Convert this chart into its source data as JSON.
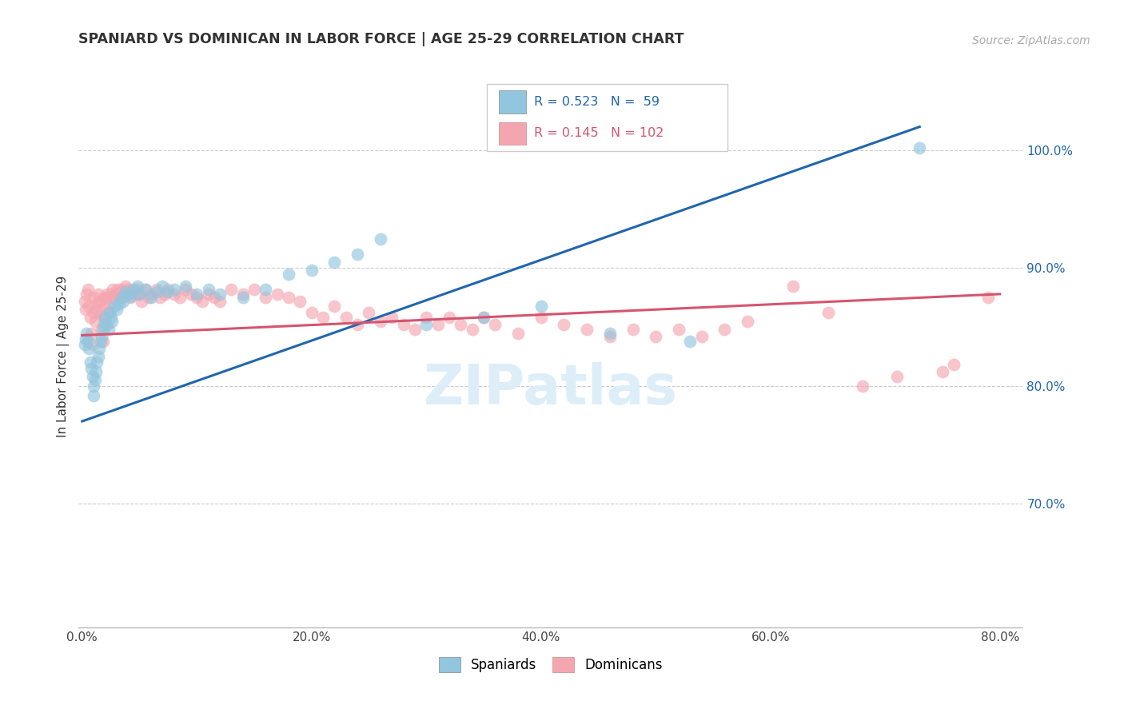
{
  "title": "SPANIARD VS DOMINICAN IN LABOR FORCE | AGE 25-29 CORRELATION CHART",
  "source": "Source: ZipAtlas.com",
  "ylabel": "In Labor Force | Age 25-29",
  "xlim": [
    -0.003,
    0.82
  ],
  "ylim": [
    0.595,
    1.055
  ],
  "xtick_vals": [
    0.0,
    0.1,
    0.2,
    0.3,
    0.4,
    0.5,
    0.6,
    0.7,
    0.8
  ],
  "xticklabels": [
    "0.0%",
    "",
    "20.0%",
    "",
    "40.0%",
    "",
    "60.0%",
    "",
    "80.0%"
  ],
  "ytick_vals": [
    0.7,
    0.8,
    0.9,
    1.0
  ],
  "yticklabels": [
    "70.0%",
    "80.0%",
    "90.0%",
    "100.0%"
  ],
  "grid_color": "#cccccc",
  "bg_color": "#ffffff",
  "blue_color": "#92c5de",
  "pink_color": "#f4a6b0",
  "blue_line_color": "#2166ac",
  "pink_line_color": "#d6546e",
  "spaniard_R": 0.523,
  "spaniard_N": 59,
  "dominican_R": 0.145,
  "dominican_N": 102,
  "blue_line_x": [
    0.0,
    0.73
  ],
  "blue_line_y": [
    0.77,
    1.02
  ],
  "pink_line_x": [
    0.0,
    0.8
  ],
  "pink_line_y": [
    0.843,
    0.878
  ],
  "spaniard_x": [
    0.002,
    0.003,
    0.004,
    0.005,
    0.006,
    0.007,
    0.008,
    0.009,
    0.01,
    0.01,
    0.011,
    0.012,
    0.013,
    0.014,
    0.015,
    0.016,
    0.017,
    0.018,
    0.019,
    0.02,
    0.022,
    0.023,
    0.024,
    0.025,
    0.026,
    0.028,
    0.03,
    0.032,
    0.034,
    0.036,
    0.038,
    0.04,
    0.042,
    0.045,
    0.048,
    0.05,
    0.055,
    0.06,
    0.065,
    0.07,
    0.075,
    0.08,
    0.09,
    0.1,
    0.11,
    0.12,
    0.14,
    0.16,
    0.18,
    0.2,
    0.22,
    0.24,
    0.26,
    0.3,
    0.35,
    0.4,
    0.46,
    0.53,
    0.73
  ],
  "spaniard_y": [
    0.835,
    0.84,
    0.845,
    0.838,
    0.832,
    0.82,
    0.815,
    0.808,
    0.8,
    0.792,
    0.805,
    0.812,
    0.82,
    0.825,
    0.832,
    0.838,
    0.842,
    0.848,
    0.852,
    0.858,
    0.852,
    0.848,
    0.862,
    0.858,
    0.855,
    0.868,
    0.865,
    0.87,
    0.875,
    0.872,
    0.88,
    0.878,
    0.876,
    0.882,
    0.885,
    0.878,
    0.882,
    0.875,
    0.88,
    0.885,
    0.88,
    0.882,
    0.885,
    0.878,
    0.882,
    0.878,
    0.875,
    0.882,
    0.895,
    0.898,
    0.905,
    0.912,
    0.925,
    0.852,
    0.858,
    0.868,
    0.845,
    0.838,
    1.002
  ],
  "dominican_x": [
    0.002,
    0.003,
    0.004,
    0.005,
    0.006,
    0.007,
    0.008,
    0.009,
    0.01,
    0.01,
    0.011,
    0.012,
    0.013,
    0.014,
    0.015,
    0.016,
    0.017,
    0.018,
    0.019,
    0.02,
    0.02,
    0.021,
    0.022,
    0.023,
    0.024,
    0.025,
    0.026,
    0.027,
    0.028,
    0.03,
    0.031,
    0.032,
    0.033,
    0.034,
    0.035,
    0.036,
    0.038,
    0.04,
    0.042,
    0.044,
    0.046,
    0.048,
    0.05,
    0.052,
    0.055,
    0.058,
    0.06,
    0.065,
    0.068,
    0.072,
    0.075,
    0.08,
    0.085,
    0.09,
    0.095,
    0.1,
    0.105,
    0.11,
    0.115,
    0.12,
    0.13,
    0.14,
    0.15,
    0.16,
    0.17,
    0.18,
    0.19,
    0.2,
    0.21,
    0.22,
    0.23,
    0.24,
    0.25,
    0.26,
    0.27,
    0.28,
    0.29,
    0.3,
    0.31,
    0.32,
    0.33,
    0.34,
    0.35,
    0.36,
    0.38,
    0.4,
    0.42,
    0.44,
    0.46,
    0.48,
    0.5,
    0.52,
    0.54,
    0.56,
    0.58,
    0.62,
    0.65,
    0.68,
    0.71,
    0.75,
    0.76,
    0.79
  ],
  "dominican_y": [
    0.872,
    0.865,
    0.878,
    0.882,
    0.868,
    0.858,
    0.845,
    0.835,
    0.875,
    0.862,
    0.855,
    0.87,
    0.865,
    0.878,
    0.872,
    0.86,
    0.848,
    0.838,
    0.875,
    0.868,
    0.858,
    0.875,
    0.878,
    0.868,
    0.862,
    0.878,
    0.875,
    0.882,
    0.875,
    0.878,
    0.882,
    0.875,
    0.88,
    0.875,
    0.882,
    0.878,
    0.885,
    0.882,
    0.875,
    0.88,
    0.878,
    0.882,
    0.878,
    0.872,
    0.882,
    0.875,
    0.878,
    0.882,
    0.875,
    0.878,
    0.882,
    0.878,
    0.875,
    0.882,
    0.878,
    0.875,
    0.872,
    0.878,
    0.875,
    0.872,
    0.882,
    0.878,
    0.882,
    0.875,
    0.878,
    0.875,
    0.872,
    0.862,
    0.858,
    0.868,
    0.858,
    0.852,
    0.862,
    0.855,
    0.858,
    0.852,
    0.848,
    0.858,
    0.852,
    0.858,
    0.852,
    0.848,
    0.858,
    0.852,
    0.845,
    0.858,
    0.852,
    0.848,
    0.842,
    0.848,
    0.842,
    0.848,
    0.842,
    0.848,
    0.855,
    0.885,
    0.862,
    0.8,
    0.808,
    0.812,
    0.818,
    0.875
  ]
}
